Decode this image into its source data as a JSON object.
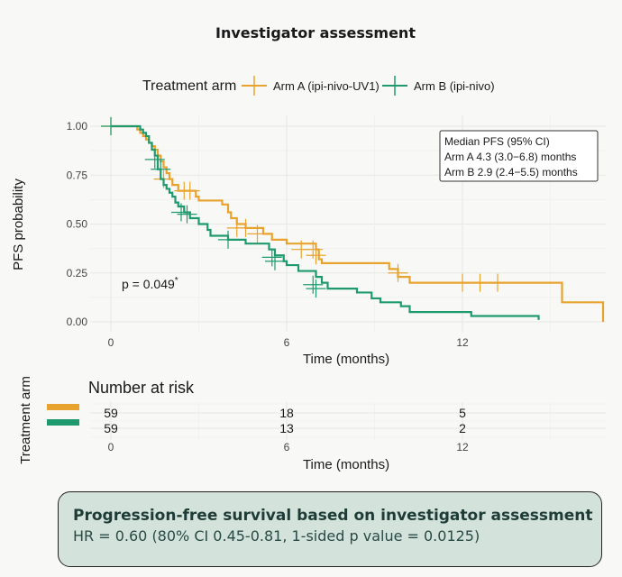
{
  "chart_data": {
    "type": "line",
    "subtype": "kaplan-meier",
    "title": "Investigator assessment",
    "legend": {
      "title": "Treatment arm",
      "placement": "top",
      "entries": [
        "Arm A (ipi-nivo-UV1)",
        "Arm B (ipi-nivo)"
      ]
    },
    "xlabel": "Time (months)",
    "ylabel": "PFS probability",
    "xlim": [
      0,
      16.8
    ],
    "ylim": [
      0,
      1
    ],
    "xticks": [
      "0",
      "6",
      "12"
    ],
    "xtick_values": [
      0,
      6,
      12
    ],
    "yticks": [
      "0.00",
      "0.25",
      "0.50",
      "0.75",
      "1.00"
    ],
    "ytick_values": [
      0,
      0.25,
      0.5,
      0.75,
      1
    ],
    "grid": true,
    "median_box": {
      "lines": [
        "Median PFS (95% CI)",
        "Arm A 4.3 (3.0−6.8) months",
        "Arm B 2.9 (2.4−5.5) months"
      ],
      "placement": "top-right"
    },
    "pvalue": {
      "text": "p = 0.049",
      "mark": "*"
    },
    "series": [
      {
        "name": "Arm A (ipi-nivo-UV1)",
        "color": "#E8A32E",
        "steps": [
          [
            0,
            1.0
          ],
          [
            0.5,
            1.0
          ],
          [
            0.9,
            0.983
          ],
          [
            1.0,
            0.966
          ],
          [
            1.1,
            0.949
          ],
          [
            1.2,
            0.932
          ],
          [
            1.3,
            0.915
          ],
          [
            1.4,
            0.898
          ],
          [
            1.5,
            0.88
          ],
          [
            1.6,
            0.85
          ],
          [
            1.7,
            0.82
          ],
          [
            1.8,
            0.79
          ],
          [
            1.9,
            0.76
          ],
          [
            2.0,
            0.73
          ],
          [
            2.1,
            0.7
          ],
          [
            2.3,
            0.67
          ],
          [
            2.9,
            0.64
          ],
          [
            3.0,
            0.62
          ],
          [
            3.8,
            0.6
          ],
          [
            4.0,
            0.56
          ],
          [
            4.1,
            0.53
          ],
          [
            4.3,
            0.5
          ],
          [
            4.6,
            0.48
          ],
          [
            5.2,
            0.45
          ],
          [
            5.5,
            0.42
          ],
          [
            6.0,
            0.4
          ],
          [
            7.0,
            0.37
          ],
          [
            7.1,
            0.32
          ],
          [
            7.2,
            0.3
          ],
          [
            8.0,
            0.3
          ],
          [
            9.5,
            0.27
          ],
          [
            9.8,
            0.23
          ],
          [
            10.2,
            0.2
          ],
          [
            15.4,
            0.1
          ],
          [
            16.8,
            0.0
          ]
        ],
        "censor": [
          [
            0.0,
            1.0
          ],
          [
            1.8,
            0.73
          ],
          [
            2.5,
            0.67
          ],
          [
            2.7,
            0.67
          ],
          [
            4.3,
            0.48
          ],
          [
            4.6,
            0.48
          ],
          [
            5.0,
            0.45
          ],
          [
            6.5,
            0.37
          ],
          [
            6.9,
            0.37
          ],
          [
            7.0,
            0.34
          ],
          [
            9.8,
            0.25
          ],
          [
            12.0,
            0.2
          ],
          [
            12.6,
            0.2
          ],
          [
            13.2,
            0.2
          ]
        ]
      },
      {
        "name": "Arm B (ipi-nivo)",
        "color": "#1E9A6E",
        "steps": [
          [
            0,
            1.0
          ],
          [
            0.9,
            1.0
          ],
          [
            1.0,
            0.983
          ],
          [
            1.1,
            0.966
          ],
          [
            1.2,
            0.949
          ],
          [
            1.3,
            0.915
          ],
          [
            1.4,
            0.88
          ],
          [
            1.5,
            0.85
          ],
          [
            1.6,
            0.78
          ],
          [
            1.7,
            0.73
          ],
          [
            1.8,
            0.7
          ],
          [
            1.9,
            0.68
          ],
          [
            2.0,
            0.66
          ],
          [
            2.1,
            0.64
          ],
          [
            2.2,
            0.61
          ],
          [
            2.3,
            0.59
          ],
          [
            2.5,
            0.56
          ],
          [
            2.7,
            0.53
          ],
          [
            3.0,
            0.5
          ],
          [
            3.3,
            0.47
          ],
          [
            3.4,
            0.44
          ],
          [
            4.0,
            0.42
          ],
          [
            4.6,
            0.4
          ],
          [
            5.4,
            0.37
          ],
          [
            5.6,
            0.34
          ],
          [
            5.9,
            0.31
          ],
          [
            6.0,
            0.29
          ],
          [
            6.4,
            0.26
          ],
          [
            7.0,
            0.23
          ],
          [
            7.2,
            0.2
          ],
          [
            7.4,
            0.17
          ],
          [
            8.4,
            0.15
          ],
          [
            8.9,
            0.12
          ],
          [
            9.2,
            0.1
          ],
          [
            9.9,
            0.08
          ],
          [
            10.2,
            0.05
          ],
          [
            12.3,
            0.03
          ],
          [
            14.6,
            0.01
          ]
        ],
        "censor": [
          [
            0.0,
            1.0
          ],
          [
            1.5,
            0.83
          ],
          [
            1.7,
            0.78
          ],
          [
            2.4,
            0.56
          ],
          [
            2.6,
            0.55
          ],
          [
            4.0,
            0.42
          ],
          [
            5.5,
            0.33
          ],
          [
            5.6,
            0.31
          ],
          [
            6.9,
            0.19
          ],
          [
            7.0,
            0.17
          ]
        ]
      }
    ],
    "risk_table": {
      "title": "Number at risk",
      "ylabel": "Treatment arm",
      "xlabel": "Time (months)",
      "xticks": [
        "0",
        "6",
        "12"
      ],
      "rows": [
        {
          "color": "#E8A32E",
          "values": [
            "59",
            "18",
            "5"
          ]
        },
        {
          "color": "#1E9A6E",
          "values": [
            "59",
            "13",
            "2"
          ]
        }
      ]
    }
  },
  "summary": {
    "title": "Progression-free survival based on investigator assessment",
    "text": "HR = 0.60 (80% CI 0.45-0.81, 1-sided p value = 0.0125)"
  }
}
